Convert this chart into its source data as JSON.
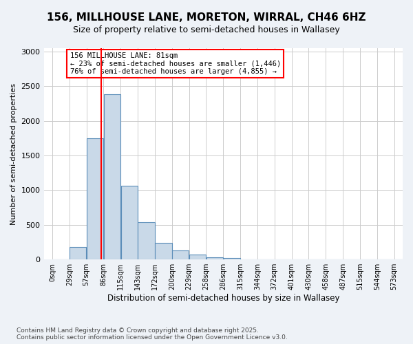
{
  "title_line1": "156, MILLHOUSE LANE, MORETON, WIRRAL, CH46 6HZ",
  "title_line2": "Size of property relative to semi-detached houses in Wallasey",
  "xlabel": "Distribution of semi-detached houses by size in Wallasey",
  "ylabel": "Number of semi-detached properties",
  "bar_labels": [
    "0sqm",
    "29sqm",
    "57sqm",
    "86sqm",
    "115sqm",
    "143sqm",
    "172sqm",
    "200sqm",
    "229sqm",
    "258sqm",
    "286sqm",
    "315sqm",
    "344sqm",
    "372sqm",
    "401sqm",
    "430sqm",
    "458sqm",
    "487sqm",
    "515sqm",
    "544sqm",
    "573sqm"
  ],
  "bar_heights": [
    0,
    180,
    1750,
    2380,
    1065,
    540,
    240,
    130,
    70,
    35,
    25,
    5,
    0,
    0,
    0,
    0,
    0,
    0,
    0,
    0,
    0
  ],
  "bar_color": "#c9d9e8",
  "bar_edge_color": "#5b8db8",
  "property_size_sqm": 81,
  "annotation_text": "156 MILLHOUSE LANE: 81sqm\n← 23% of semi-detached houses are smaller (1,446)\n76% of semi-detached houses are larger (4,855) →",
  "annotation_box_color": "white",
  "annotation_box_edge_color": "red",
  "vline_color": "red",
  "ylim": [
    0,
    3050
  ],
  "bin_width": 28.5,
  "footnote": "Contains HM Land Registry data © Crown copyright and database right 2025.\nContains public sector information licensed under the Open Government Licence v3.0.",
  "background_color": "#eef2f7",
  "plot_background_color": "white",
  "grid_color": "#cccccc"
}
